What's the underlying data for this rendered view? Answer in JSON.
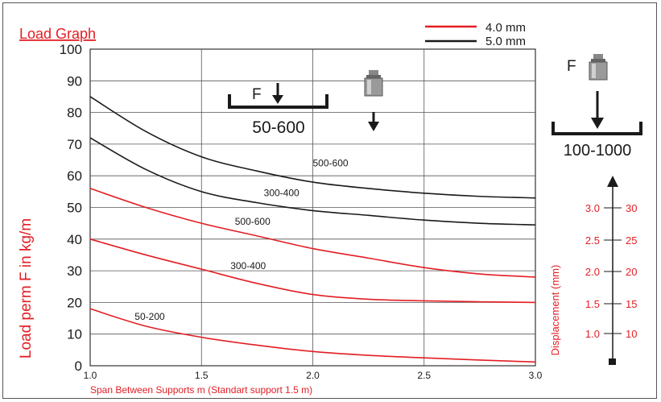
{
  "chart_data": {
    "type": "line",
    "title": "Load Graph",
    "xlabel": "Span Between Supports m (Standart support 1.5 m)",
    "ylabel": "Load perm F in kg/m",
    "xlim": [
      1.0,
      3.0
    ],
    "ylim": [
      0,
      100
    ],
    "x_ticks": [
      "1.0",
      "1.5",
      "2.0",
      "2.5",
      "3.0"
    ],
    "y_ticks": [
      "0",
      "10",
      "20",
      "30",
      "40",
      "50",
      "60",
      "70",
      "80",
      "90",
      "100"
    ],
    "grid": true,
    "legend": {
      "position": "top-right",
      "entries": [
        {
          "label": "4.0 mm",
          "color": "#e31e24"
        },
        {
          "label": "5.0 mm",
          "color": "#1a1a1a"
        }
      ]
    },
    "series": [
      {
        "group": "5.0 mm",
        "color": "#1a1a1a",
        "label": "500-600",
        "label_at": [
          2.0,
          63
        ],
        "x": [
          1.0,
          1.25,
          1.5,
          1.75,
          2.0,
          2.25,
          2.5,
          2.75,
          3.0
        ],
        "y": [
          85,
          74,
          66,
          61.5,
          58,
          56,
          54.5,
          53.5,
          53
        ]
      },
      {
        "group": "5.0 mm",
        "color": "#1a1a1a",
        "label": "300-400",
        "label_at": [
          1.78,
          53.5
        ],
        "x": [
          1.0,
          1.25,
          1.5,
          1.75,
          2.0,
          2.25,
          2.5,
          2.75,
          3.0
        ],
        "y": [
          72,
          62,
          55,
          51.5,
          49,
          47.5,
          46,
          45,
          44.5
        ]
      },
      {
        "group": "4.0 mm",
        "color": "#e31e24",
        "label": "500-600",
        "label_at": [
          1.65,
          44.5
        ],
        "x": [
          1.0,
          1.25,
          1.5,
          1.75,
          2.0,
          2.25,
          2.5,
          2.75,
          3.0
        ],
        "y": [
          56,
          50,
          45,
          41,
          37,
          34,
          31,
          29,
          28
        ]
      },
      {
        "group": "4.0 mm",
        "color": "#e31e24",
        "label": "300-400",
        "label_at": [
          1.63,
          30.5
        ],
        "x": [
          1.0,
          1.25,
          1.5,
          1.75,
          2.0,
          2.25,
          2.5,
          2.75,
          3.0
        ],
        "y": [
          40,
          35,
          30.5,
          26,
          22.5,
          21,
          20.5,
          20.2,
          20
        ]
      },
      {
        "group": "4.0 mm",
        "color": "#e31e24",
        "label": "50-200",
        "label_at": [
          1.2,
          14.5
        ],
        "x": [
          1.0,
          1.25,
          1.5,
          1.75,
          2.0,
          2.25,
          2.5,
          2.75,
          3.0
        ],
        "y": [
          18,
          12.5,
          9,
          6.5,
          4.5,
          3.3,
          2.5,
          1.8,
          1.2
        ]
      }
    ],
    "annotations": {
      "inline_load_label": "F",
      "inline_load_range": "50-600",
      "side_load_label": "F",
      "side_load_range": "100-1000"
    },
    "displacement_scale": {
      "label": "Displacement (mm)",
      "left_ticks": [
        "3.0",
        "2.5",
        "2.0",
        "1.5",
        "1.0"
      ],
      "right_ticks": [
        "30",
        "25",
        "20",
        "15",
        "10"
      ]
    }
  },
  "colors": {
    "red": "#e31e24",
    "black": "#1a1a1a",
    "grid": "#555555"
  }
}
